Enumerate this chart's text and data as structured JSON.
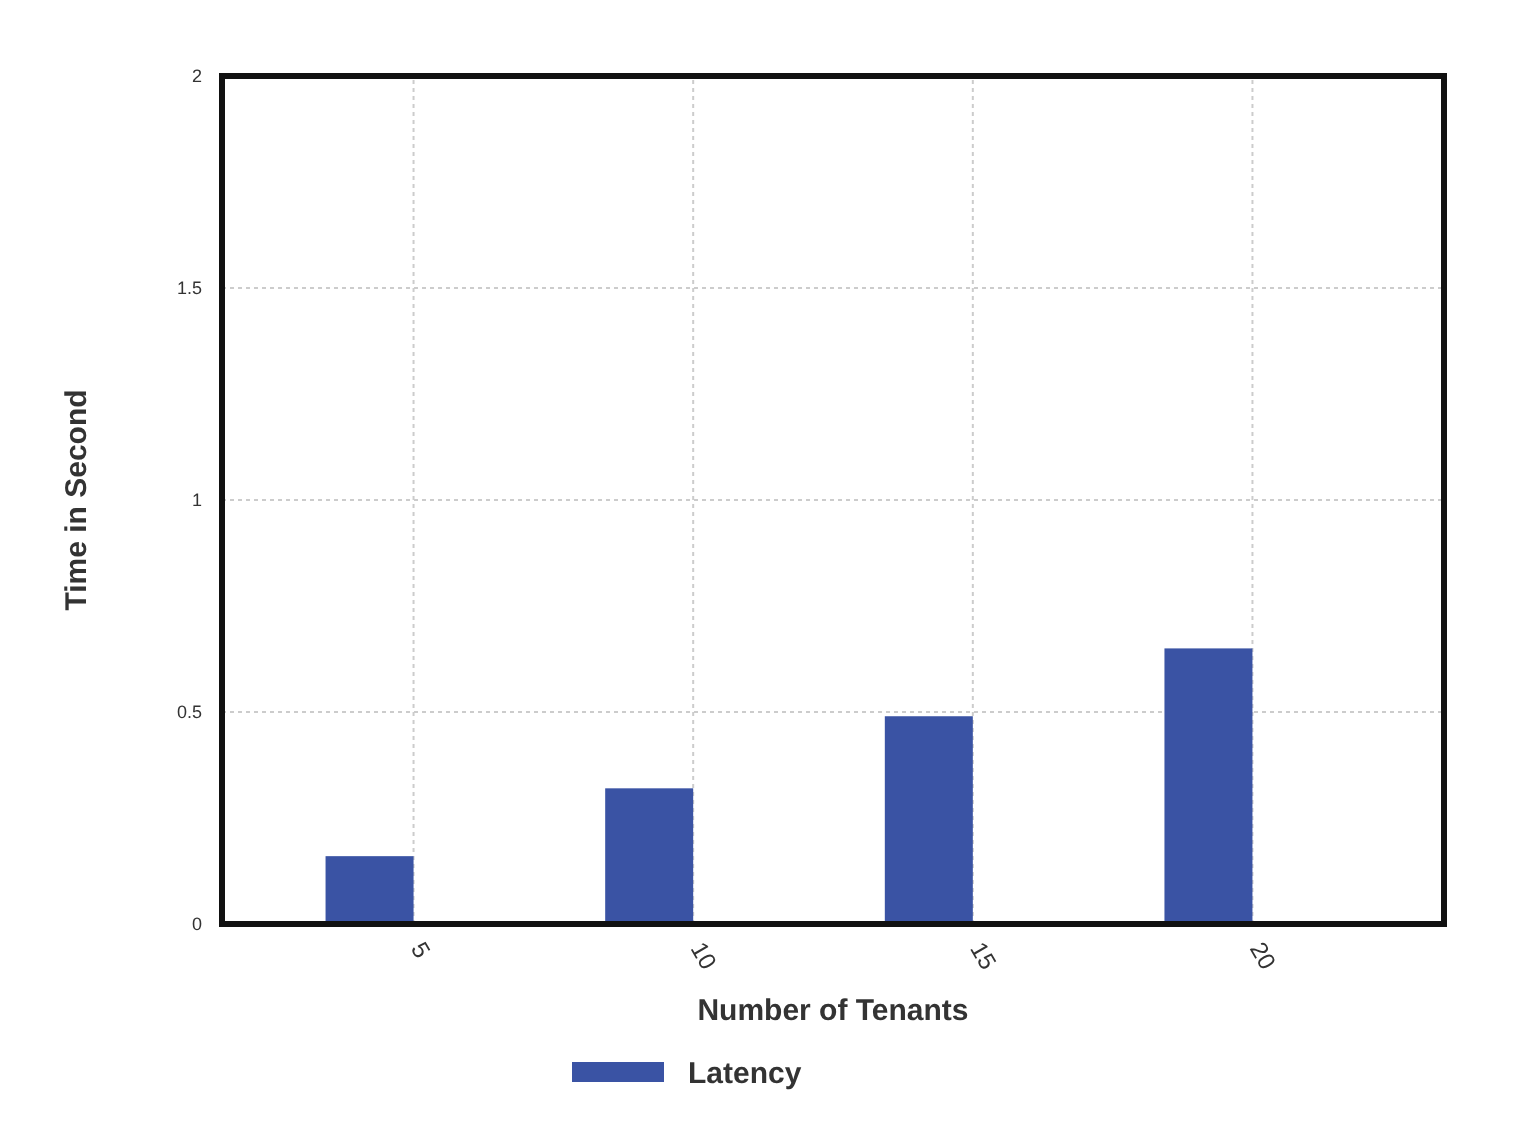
{
  "chart_data": {
    "type": "bar",
    "xlabel": "Number of Tenants",
    "ylabel": "Time in Second",
    "categories": [
      "5",
      "10",
      "15",
      "20"
    ],
    "series": [
      {
        "name": "Latency",
        "color": "#3a53a4",
        "values": [
          0.16,
          0.32,
          0.49,
          0.65
        ]
      }
    ],
    "ylim": [
      0,
      2
    ],
    "yticks": [
      0,
      {
        "value": 0.5,
        "label": "0.5"
      },
      1,
      {
        "value": 1.5,
        "label": "1.5"
      },
      2
    ],
    "grid": true,
    "legend": "bottom"
  }
}
